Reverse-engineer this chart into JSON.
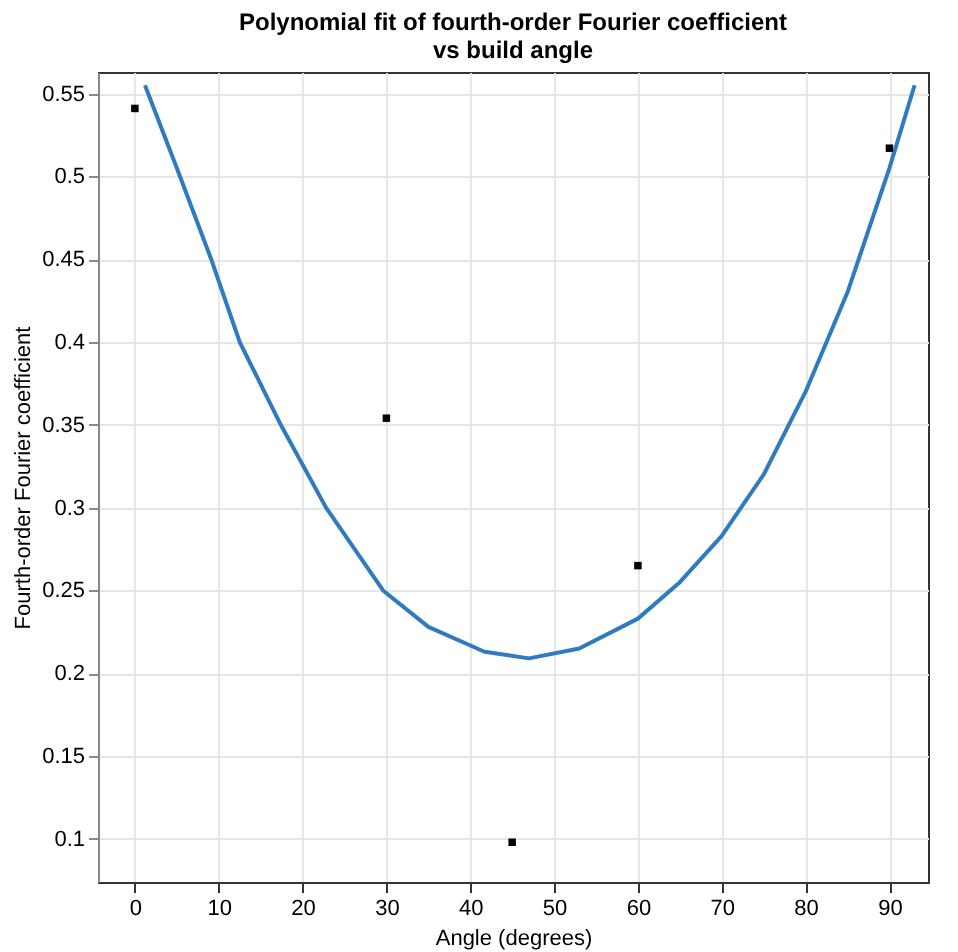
{
  "chart_data": {
    "type": "scatter",
    "title": "Polynomial fit of fourth-order Fourier coefficient\nvs build angle",
    "xlabel": "Angle (degrees)",
    "ylabel": "Fourth-order Fourier coefficient",
    "xlim": [
      -4.4,
      94.6
    ],
    "ylim": [
      0.074,
      0.563
    ],
    "xticks": [
      0,
      10,
      20,
      30,
      40,
      50,
      60,
      70,
      80,
      90
    ],
    "yticks": [
      0.1,
      0.15,
      0.2,
      0.25,
      0.3,
      0.35,
      0.4,
      0.45,
      0.5,
      0.55
    ],
    "grid": true,
    "series": [
      {
        "type": "line",
        "color": "#2f7bbf",
        "marker": "none",
        "x": [
          1.2,
          5,
          9.1,
          12.5,
          17.4,
          22.8,
          29.6,
          35,
          41.7,
          47,
          53,
          60,
          65,
          70,
          75,
          80,
          85,
          90,
          93
        ],
        "values": [
          0.555,
          0.505,
          0.45,
          0.4,
          0.35,
          0.3,
          0.25,
          0.228,
          0.213,
          0.209,
          0.215,
          0.233,
          0.255,
          0.283,
          0.32,
          0.37,
          0.43,
          0.505,
          0.555
        ]
      },
      {
        "color": "#000000",
        "marker": "square",
        "x": [
          0,
          30,
          45,
          60,
          90
        ],
        "values": [
          0.541,
          0.354,
          0.098,
          0.265,
          0.517
        ]
      }
    ]
  }
}
